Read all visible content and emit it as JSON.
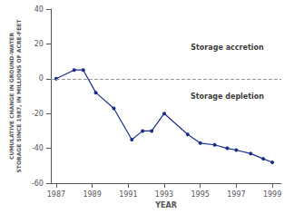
{
  "chart_data": {
    "type": "line",
    "x": [
      1987,
      1988,
      1988.5,
      1989.2,
      1990.2,
      1991.2,
      1991.8,
      1992.3,
      1993,
      1994.3,
      1995.0,
      1995.8,
      1996.5,
      1997.0,
      1997.8,
      1998.5,
      1999
    ],
    "values": [
      0,
      5,
      5,
      -8,
      -17,
      -35,
      -30,
      -30,
      -20,
      -32,
      -37,
      -38,
      -40,
      -41,
      -43,
      -46,
      -48
    ],
    "color": "#1a2d8a",
    "marker": "circle",
    "xlim": [
      1986.7,
      1999.5
    ],
    "ylim": [
      -60,
      40
    ],
    "xticks": [
      1987,
      1989,
      1991,
      1993,
      1995,
      1997,
      1999
    ],
    "yticks": [
      -60,
      -40,
      -20,
      0,
      20,
      40
    ],
    "xlabel": "YEAR",
    "ylabel": "CUMULATIVE CHANGE IN GROUND-WATER\nSTORAGE SINCE 1987, IN MILLIONS OF ACRE-FEET",
    "hlines": [
      {
        "y": 0,
        "color": "#999999",
        "line_style": "dashed"
      }
    ],
    "annotations": [
      {
        "text": "Storage accretion",
        "x": 1996.5,
        "y": 18
      },
      {
        "text": "Storage depletion",
        "x": 1996.5,
        "y": -10
      }
    ],
    "grid": false
  }
}
